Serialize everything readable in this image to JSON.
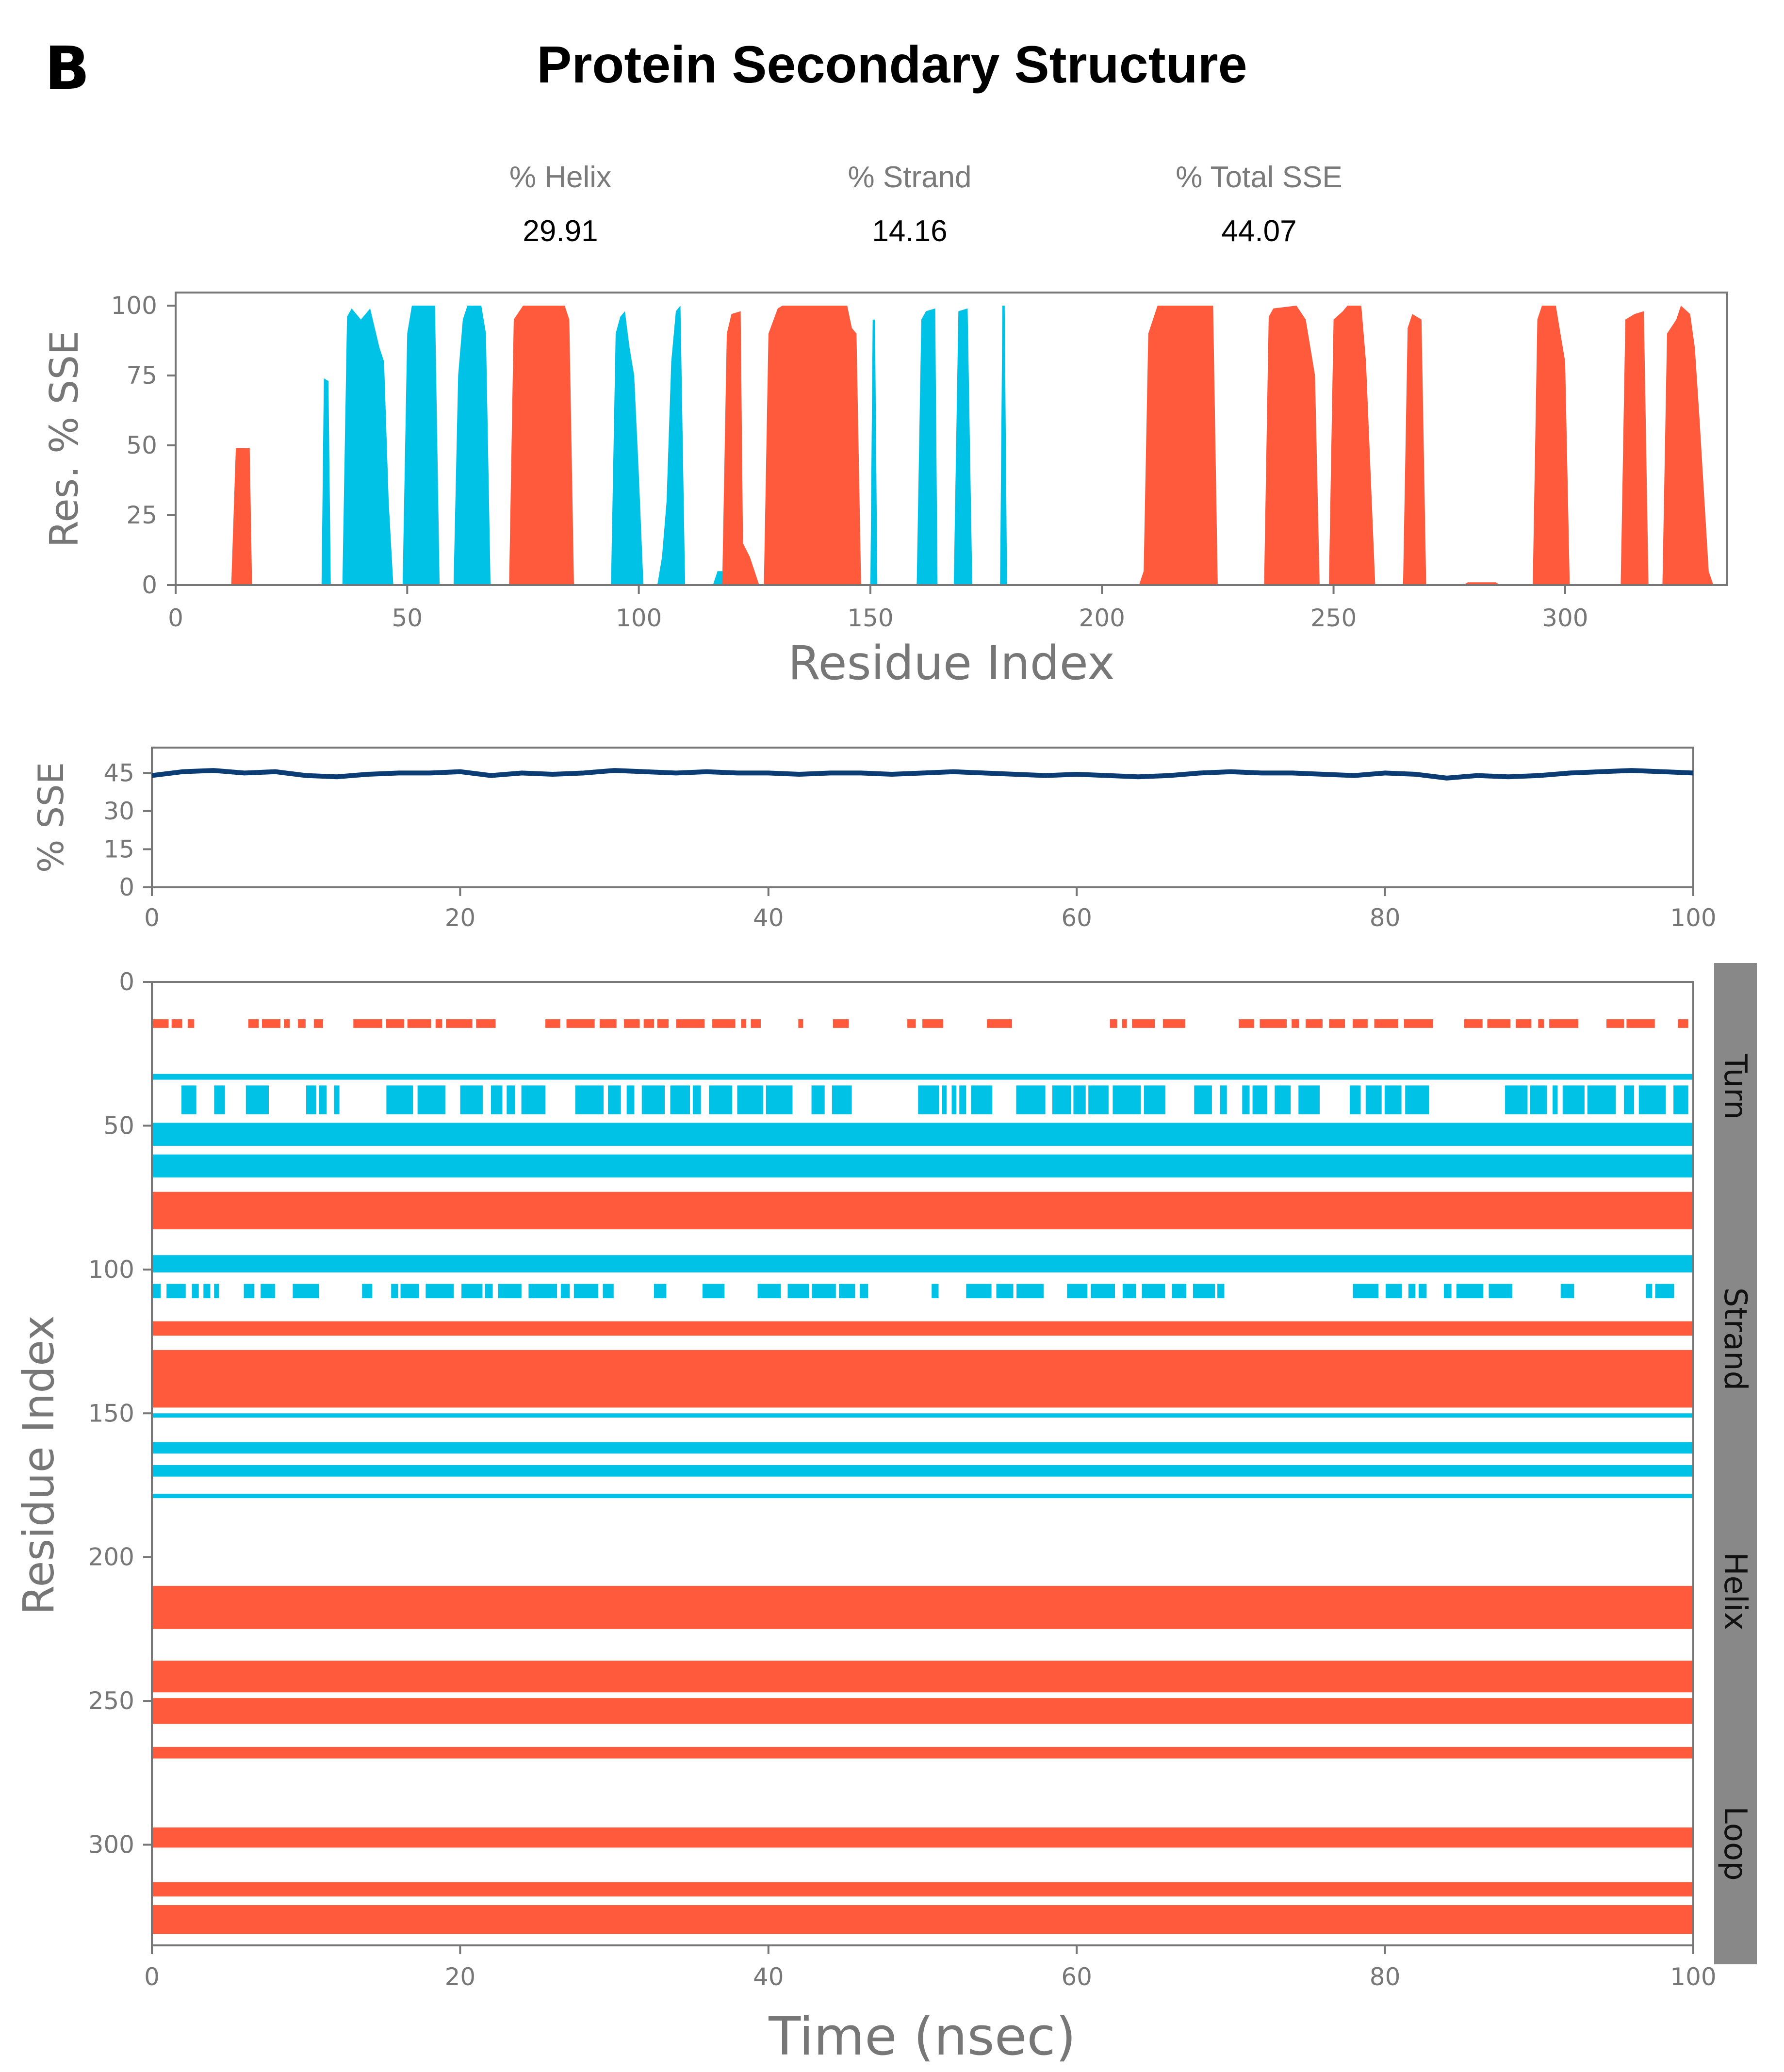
{
  "panel_label": "B",
  "title": "Protein Secondary Structure",
  "stats": [
    {
      "label": "% Helix",
      "value": "29.91"
    },
    {
      "label": "% Strand",
      "value": "14.16"
    },
    {
      "label": "% Total SSE",
      "value": "44.07"
    }
  ],
  "colors": {
    "helix": "#FF5A3C",
    "strand": "#00C2E6",
    "line": "#0B3C73",
    "axis": "#777777",
    "side_bar": "#888888"
  },
  "chart_data": [
    {
      "type": "area",
      "name": "residue-sse",
      "xlabel": "Residue Index",
      "ylabel": "Res. % SSE",
      "xlim": [
        0,
        335
      ],
      "ylim": [
        0,
        100
      ],
      "x_ticks": [
        0,
        50,
        100,
        150,
        200,
        250,
        300
      ],
      "y_ticks": [
        0,
        25,
        50,
        75,
        100
      ],
      "segments": [
        {
          "ss": "helix",
          "points": [
            [
              12,
              0
            ],
            [
              13,
              49
            ],
            [
              16,
              49
            ],
            [
              16.5,
              0
            ]
          ]
        },
        {
          "ss": "strand",
          "points": [
            [
              31.5,
              0
            ],
            [
              32,
              74
            ],
            [
              33,
              73
            ],
            [
              33.5,
              0
            ]
          ]
        },
        {
          "ss": "strand",
          "points": [
            [
              36,
              0
            ],
            [
              37,
              96
            ],
            [
              38,
              99
            ],
            [
              40,
              95
            ],
            [
              42,
              99
            ],
            [
              43,
              92
            ],
            [
              44,
              85
            ],
            [
              45,
              80
            ],
            [
              46,
              30
            ],
            [
              47,
              0
            ]
          ]
        },
        {
          "ss": "strand",
          "points": [
            [
              49,
              0
            ],
            [
              50,
              90
            ],
            [
              51,
              100
            ],
            [
              56,
              100
            ],
            [
              57,
              0
            ]
          ]
        },
        {
          "ss": "strand",
          "points": [
            [
              60,
              0
            ],
            [
              61,
              75
            ],
            [
              62,
              95
            ],
            [
              63,
              100
            ],
            [
              66,
              100
            ],
            [
              67,
              90
            ],
            [
              68,
              0
            ]
          ]
        },
        {
          "ss": "helix",
          "points": [
            [
              72,
              0
            ],
            [
              73,
              95
            ],
            [
              75,
              100
            ],
            [
              84,
              100
            ],
            [
              85,
              95
            ],
            [
              86,
              0
            ]
          ]
        },
        {
          "ss": "strand",
          "points": [
            [
              94,
              0
            ],
            [
              95,
              90
            ],
            [
              96,
              96
            ],
            [
              97,
              98
            ],
            [
              98,
              85
            ],
            [
              99,
              75
            ],
            [
              100,
              40
            ],
            [
              101,
              0
            ]
          ]
        },
        {
          "ss": "strand",
          "points": [
            [
              104,
              0
            ],
            [
              105,
              10
            ],
            [
              106,
              30
            ],
            [
              107,
              80
            ],
            [
              108,
              98
            ],
            [
              109,
              100
            ],
            [
              110,
              0
            ]
          ]
        },
        {
          "ss": "strand",
          "points": [
            [
              116,
              0
            ],
            [
              117,
              5
            ],
            [
              118,
              5
            ],
            [
              119,
              0
            ]
          ]
        },
        {
          "ss": "helix",
          "points": [
            [
              118,
              0
            ],
            [
              119,
              90
            ],
            [
              120,
              97
            ],
            [
              122,
              98
            ],
            [
              122.5,
              15
            ],
            [
              124,
              10
            ],
            [
              126,
              0
            ]
          ]
        },
        {
          "ss": "helix",
          "points": [
            [
              127,
              0
            ],
            [
              128,
              90
            ],
            [
              130,
              99
            ],
            [
              131,
              100
            ],
            [
              145,
              100
            ],
            [
              146,
              92
            ],
            [
              147,
              90
            ],
            [
              148,
              0
            ]
          ]
        },
        {
          "ss": "strand",
          "points": [
            [
              150,
              0
            ],
            [
              150.5,
              95
            ],
            [
              151,
              95
            ],
            [
              151.5,
              0
            ]
          ]
        },
        {
          "ss": "strand",
          "points": [
            [
              160,
              0
            ],
            [
              161,
              95
            ],
            [
              162,
              98
            ],
            [
              164,
              99
            ],
            [
              164.5,
              0
            ]
          ]
        },
        {
          "ss": "strand",
          "points": [
            [
              168,
              0
            ],
            [
              169,
              98
            ],
            [
              171,
              99
            ],
            [
              172,
              0
            ]
          ]
        },
        {
          "ss": "strand",
          "points": [
            [
              178,
              0
            ],
            [
              178.5,
              100
            ],
            [
              179,
              100
            ],
            [
              179.5,
              0
            ]
          ]
        },
        {
          "ss": "helix",
          "points": [
            [
              208,
              0
            ],
            [
              209,
              5
            ],
            [
              210,
              90
            ],
            [
              212,
              100
            ],
            [
              224,
              100
            ],
            [
              225,
              0
            ]
          ]
        },
        {
          "ss": "helix",
          "points": [
            [
              235,
              0
            ],
            [
              236,
              96
            ],
            [
              237,
              99
            ],
            [
              242,
              100
            ],
            [
              244,
              95
            ],
            [
              246,
              75
            ],
            [
              247,
              0
            ]
          ]
        },
        {
          "ss": "helix",
          "points": [
            [
              249,
              0
            ],
            [
              250,
              95
            ],
            [
              252,
              98
            ],
            [
              253,
              100
            ],
            [
              256,
              100
            ],
            [
              257,
              80
            ],
            [
              259,
              0
            ]
          ]
        },
        {
          "ss": "helix",
          "points": [
            [
              265,
              0
            ],
            [
              266,
              92
            ],
            [
              267,
              97
            ],
            [
              269,
              95
            ],
            [
              270,
              0
            ]
          ]
        },
        {
          "ss": "helix",
          "points": [
            [
              278,
              0
            ],
            [
              279,
              1
            ],
            [
              285,
              1
            ],
            [
              286,
              0
            ]
          ]
        },
        {
          "ss": "helix",
          "points": [
            [
              293,
              0
            ],
            [
              294,
              95
            ],
            [
              295,
              100
            ],
            [
              298,
              100
            ],
            [
              299,
              90
            ],
            [
              300,
              80
            ],
            [
              301,
              0
            ]
          ]
        },
        {
          "ss": "helix",
          "points": [
            [
              312,
              0
            ],
            [
              313,
              95
            ],
            [
              315,
              97
            ],
            [
              317,
              98
            ],
            [
              318,
              0
            ]
          ]
        },
        {
          "ss": "helix",
          "points": [
            [
              321,
              0
            ],
            [
              322,
              90
            ],
            [
              324,
              95
            ],
            [
              325,
              100
            ],
            [
              327,
              97
            ],
            [
              328,
              85
            ],
            [
              329,
              60
            ],
            [
              331,
              5
            ],
            [
              332,
              0
            ]
          ]
        }
      ]
    },
    {
      "type": "line",
      "name": "total-sse-over-time",
      "ylabel": "% SSE",
      "xlim": [
        0,
        100
      ],
      "ylim": [
        0,
        55
      ],
      "x_ticks": [
        0,
        20,
        40,
        60,
        80,
        100
      ],
      "y_ticks": [
        0,
        15,
        30,
        45
      ],
      "x": [
        0,
        2,
        4,
        6,
        8,
        10,
        12,
        14,
        16,
        18,
        20,
        22,
        24,
        26,
        28,
        30,
        32,
        34,
        36,
        38,
        40,
        42,
        44,
        46,
        48,
        50,
        52,
        54,
        56,
        58,
        60,
        62,
        64,
        66,
        68,
        70,
        72,
        74,
        76,
        78,
        80,
        82,
        84,
        86,
        88,
        90,
        92,
        94,
        96,
        98,
        100
      ],
      "y": [
        44,
        45.5,
        46,
        45,
        45.5,
        44,
        43.5,
        44.5,
        45,
        45,
        45.5,
        44,
        45,
        44.5,
        45,
        46,
        45.5,
        45,
        45.5,
        45,
        45,
        44.5,
        45,
        45,
        44.5,
        45,
        45.5,
        45,
        44.5,
        44,
        44.5,
        44,
        43.5,
        44,
        45,
        45.5,
        45,
        45,
        44.5,
        44,
        45,
        44.5,
        43,
        44,
        43.5,
        44,
        45,
        45.5,
        46,
        45.5,
        45
      ]
    },
    {
      "type": "heatmap",
      "name": "sse-per-residue-over-time",
      "xlabel": "Time (nsec)",
      "ylabel": "Residue Index",
      "xlim": [
        0,
        100
      ],
      "ylim": [
        335,
        0
      ],
      "x_ticks": [
        0,
        20,
        40,
        60,
        80,
        100
      ],
      "y_ticks": [
        0,
        50,
        100,
        150,
        200,
        250,
        300
      ],
      "legend": [
        "Turn",
        "Strand",
        "Helix",
        "Loop"
      ],
      "bands": [
        {
          "ss": "helix",
          "r0": 13,
          "r1": 16,
          "intermittent": true,
          "t_end": 100
        },
        {
          "ss": "strand",
          "r0": 32,
          "r1": 34,
          "intermittent": false,
          "t_end": 100
        },
        {
          "ss": "strand",
          "r0": 36,
          "r1": 46,
          "intermittent": true,
          "t_end": 100
        },
        {
          "ss": "strand",
          "r0": 49,
          "r1": 57,
          "intermittent": false,
          "t_end": 100
        },
        {
          "ss": "strand",
          "r0": 60,
          "r1": 68,
          "intermittent": false,
          "t_end": 100
        },
        {
          "ss": "helix",
          "r0": 73,
          "r1": 86,
          "intermittent": false,
          "t_end": 100
        },
        {
          "ss": "strand",
          "r0": 95,
          "r1": 101,
          "intermittent": false,
          "t_end": 100
        },
        {
          "ss": "strand",
          "r0": 105,
          "r1": 110,
          "intermittent": true,
          "t_end": 100
        },
        {
          "ss": "helix",
          "r0": 118,
          "r1": 123,
          "intermittent": false,
          "t_end": 100
        },
        {
          "ss": "helix",
          "r0": 128,
          "r1": 148,
          "intermittent": false,
          "t_end": 100
        },
        {
          "ss": "strand",
          "r0": 150,
          "r1": 151.5,
          "intermittent": false,
          "t_end": 100
        },
        {
          "ss": "strand",
          "r0": 160,
          "r1": 164,
          "intermittent": false,
          "t_end": 100
        },
        {
          "ss": "strand",
          "r0": 168,
          "r1": 172,
          "intermittent": false,
          "t_end": 100
        },
        {
          "ss": "strand",
          "r0": 178,
          "r1": 179.5,
          "intermittent": false,
          "t_end": 100
        },
        {
          "ss": "helix",
          "r0": 210,
          "r1": 225,
          "intermittent": false,
          "t_end": 100
        },
        {
          "ss": "helix",
          "r0": 236,
          "r1": 247,
          "intermittent": false,
          "t_end": 100
        },
        {
          "ss": "helix",
          "r0": 249,
          "r1": 258,
          "intermittent": false,
          "t_end": 100
        },
        {
          "ss": "helix",
          "r0": 266,
          "r1": 270,
          "intermittent": false,
          "t_end": 100
        },
        {
          "ss": "helix",
          "r0": 294,
          "r1": 301,
          "intermittent": false,
          "t_end": 100
        },
        {
          "ss": "helix",
          "r0": 313,
          "r1": 318,
          "intermittent": false,
          "t_end": 100
        },
        {
          "ss": "helix",
          "r0": 321,
          "r1": 331,
          "intermittent": false,
          "t_end": 100
        }
      ]
    }
  ]
}
